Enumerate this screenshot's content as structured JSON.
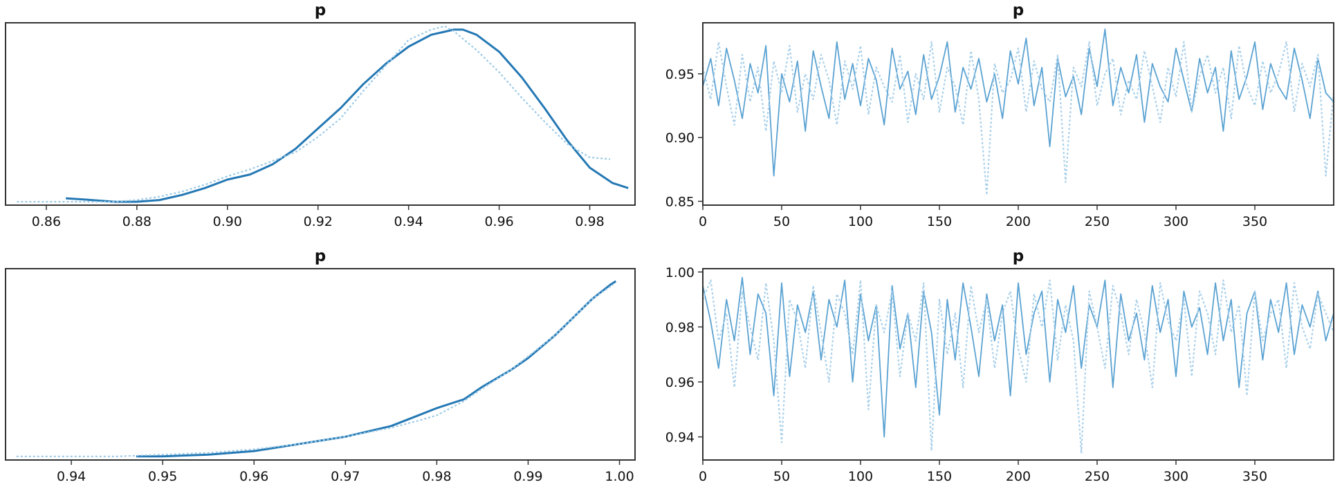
{
  "chart_data": [
    {
      "type": "line",
      "panel": "kde-top",
      "title": "p",
      "xlabel": "",
      "ylabel": "",
      "xlim": [
        0.851,
        0.99
      ],
      "ylim": [
        0,
        1.07
      ],
      "xticks": [
        "0.86",
        "0.88",
        "0.90",
        "0.92",
        "0.94",
        "0.96",
        "0.98"
      ],
      "yticks": [],
      "series": [
        {
          "style": "solid",
          "color": "#2478b4",
          "x": [
            0.8643,
            0.87,
            0.875,
            0.88,
            0.885,
            0.89,
            0.895,
            0.9,
            0.905,
            0.91,
            0.915,
            0.92,
            0.925,
            0.93,
            0.935,
            0.94,
            0.945,
            0.95,
            0.952,
            0.955,
            0.96,
            0.965,
            0.97,
            0.975,
            0.98,
            0.985,
            0.9885
          ],
          "values": [
            0.04,
            0.03,
            0.02,
            0.02,
            0.03,
            0.06,
            0.1,
            0.15,
            0.18,
            0.24,
            0.33,
            0.45,
            0.57,
            0.71,
            0.83,
            0.93,
            1.0,
            1.03,
            1.03,
            1.0,
            0.9,
            0.75,
            0.57,
            0.38,
            0.22,
            0.13,
            0.1
          ]
        },
        {
          "style": "dotted",
          "color": "#9ccae6",
          "x": [
            0.8535,
            0.86,
            0.865,
            0.87,
            0.875,
            0.88,
            0.885,
            0.89,
            0.895,
            0.9,
            0.905,
            0.91,
            0.915,
            0.92,
            0.925,
            0.93,
            0.935,
            0.94,
            0.945,
            0.948,
            0.95,
            0.955,
            0.96,
            0.965,
            0.97,
            0.975,
            0.98,
            0.9845
          ],
          "values": [
            0.02,
            0.02,
            0.02,
            0.02,
            0.02,
            0.03,
            0.05,
            0.08,
            0.12,
            0.17,
            0.21,
            0.26,
            0.31,
            0.4,
            0.51,
            0.67,
            0.82,
            0.97,
            1.03,
            1.05,
            1.02,
            0.91,
            0.78,
            0.63,
            0.49,
            0.36,
            0.28,
            0.27
          ]
        }
      ]
    },
    {
      "type": "line",
      "panel": "trace-top",
      "title": "p",
      "xlabel": "",
      "ylabel": "",
      "xlim": [
        0,
        400
      ],
      "ylim": [
        0.847,
        0.99
      ],
      "xticks": [
        "0",
        "50",
        "100",
        "150",
        "200",
        "250",
        "300",
        "350"
      ],
      "yticks": [
        "0.85",
        "0.90",
        "0.95"
      ],
      "series": [
        {
          "style": "solid",
          "color": "#5aa2d2",
          "x": [
            0,
            5,
            10,
            15,
            20,
            25,
            30,
            35,
            40,
            45,
            50,
            55,
            60,
            65,
            70,
            75,
            80,
            85,
            90,
            95,
            100,
            105,
            110,
            115,
            120,
            125,
            130,
            135,
            140,
            145,
            150,
            155,
            160,
            165,
            170,
            175,
            180,
            185,
            190,
            195,
            200,
            205,
            210,
            215,
            220,
            225,
            230,
            235,
            240,
            245,
            250,
            255,
            260,
            265,
            270,
            275,
            280,
            285,
            290,
            295,
            300,
            305,
            310,
            315,
            320,
            325,
            330,
            335,
            340,
            345,
            350,
            355,
            360,
            365,
            370,
            375,
            380,
            385,
            390,
            395,
            400
          ],
          "values": [
            0.94,
            0.962,
            0.925,
            0.97,
            0.945,
            0.915,
            0.958,
            0.935,
            0.972,
            0.87,
            0.95,
            0.928,
            0.96,
            0.905,
            0.968,
            0.94,
            0.915,
            0.975,
            0.93,
            0.958,
            0.925,
            0.962,
            0.945,
            0.91,
            0.97,
            0.938,
            0.952,
            0.918,
            0.965,
            0.93,
            0.948,
            0.975,
            0.92,
            0.955,
            0.938,
            0.962,
            0.928,
            0.95,
            0.915,
            0.968,
            0.942,
            0.978,
            0.925,
            0.955,
            0.893,
            0.962,
            0.932,
            0.948,
            0.918,
            0.97,
            0.94,
            0.985,
            0.925,
            0.955,
            0.935,
            0.965,
            0.912,
            0.958,
            0.94,
            0.928,
            0.97,
            0.945,
            0.92,
            0.962,
            0.935,
            0.955,
            0.905,
            0.968,
            0.93,
            0.948,
            0.975,
            0.922,
            0.958,
            0.94,
            0.93,
            0.97,
            0.945,
            0.915,
            0.962,
            0.935,
            0.928
          ]
        },
        {
          "style": "dotted",
          "color": "#a9d0ea",
          "x": [
            0,
            5,
            10,
            15,
            20,
            25,
            30,
            35,
            40,
            45,
            50,
            55,
            60,
            65,
            70,
            75,
            80,
            85,
            90,
            95,
            100,
            105,
            110,
            115,
            120,
            125,
            130,
            135,
            140,
            145,
            150,
            155,
            160,
            165,
            170,
            175,
            180,
            185,
            190,
            195,
            200,
            205,
            210,
            215,
            220,
            225,
            230,
            235,
            240,
            245,
            250,
            255,
            260,
            265,
            270,
            275,
            280,
            285,
            290,
            295,
            300,
            305,
            310,
            315,
            320,
            325,
            330,
            335,
            340,
            345,
            350,
            355,
            360,
            365,
            370,
            375,
            380,
            385,
            390,
            395,
            400
          ],
          "values": [
            0.955,
            0.93,
            0.975,
            0.94,
            0.91,
            0.965,
            0.928,
            0.955,
            0.905,
            0.96,
            0.935,
            0.972,
            0.92,
            0.95,
            0.93,
            0.965,
            0.945,
            0.91,
            0.96,
            0.938,
            0.972,
            0.918,
            0.955,
            0.94,
            0.928,
            0.965,
            0.912,
            0.95,
            0.93,
            0.975,
            0.92,
            0.955,
            0.94,
            0.91,
            0.968,
            0.93,
            0.855,
            0.958,
            0.935,
            0.945,
            0.97,
            0.92,
            0.96,
            0.938,
            0.928,
            0.965,
            0.865,
            0.955,
            0.94,
            0.975,
            0.925,
            0.95,
            0.962,
            0.918,
            0.945,
            0.93,
            0.968,
            0.94,
            0.912,
            0.955,
            0.932,
            0.975,
            0.92,
            0.948,
            0.965,
            0.935,
            0.955,
            0.915,
            0.972,
            0.94,
            0.925,
            0.96,
            0.935,
            0.95,
            0.975,
            0.92,
            0.958,
            0.94,
            0.965,
            0.87,
            0.935
          ]
        }
      ]
    },
    {
      "type": "line",
      "panel": "kde-bottom",
      "title": "p",
      "xlabel": "",
      "ylabel": "",
      "xlim": [
        0.9328,
        1.0017
      ],
      "ylim": [
        0,
        1.07
      ],
      "xticks": [
        "0.94",
        "0.95",
        "0.96",
        "0.97",
        "0.98",
        "0.99",
        "1.00"
      ],
      "yticks": [],
      "series": [
        {
          "style": "solid",
          "color": "#2478b4",
          "x": [
            0.9471,
            0.95,
            0.955,
            0.96,
            0.965,
            0.97,
            0.975,
            0.978,
            0.98,
            0.983,
            0.985,
            0.988,
            0.99,
            0.993,
            0.995,
            0.997,
            0.999,
            0.9996
          ],
          "values": [
            0.02,
            0.02,
            0.03,
            0.05,
            0.09,
            0.13,
            0.19,
            0.25,
            0.29,
            0.34,
            0.41,
            0.5,
            0.57,
            0.7,
            0.8,
            0.9,
            0.98,
            1.0
          ]
        },
        {
          "style": "dotted",
          "color": "#9ccae6",
          "x": [
            0.934,
            0.94,
            0.945,
            0.95,
            0.955,
            0.96,
            0.965,
            0.97,
            0.975,
            0.978,
            0.98,
            0.983,
            0.985,
            0.988,
            0.99,
            0.993,
            0.995,
            0.997,
            0.9993
          ],
          "values": [
            0.02,
            0.02,
            0.02,
            0.03,
            0.04,
            0.06,
            0.09,
            0.13,
            0.18,
            0.22,
            0.25,
            0.33,
            0.4,
            0.5,
            0.58,
            0.7,
            0.8,
            0.9,
            0.98
          ]
        }
      ]
    },
    {
      "type": "line",
      "panel": "trace-bottom",
      "title": "p",
      "xlabel": "",
      "ylabel": "",
      "xlim": [
        0,
        400
      ],
      "ylim": [
        0.9316,
        1.0012
      ],
      "xticks": [
        "0",
        "50",
        "100",
        "150",
        "200",
        "250",
        "300",
        "350"
      ],
      "yticks": [
        "0.94",
        "0.96",
        "0.98",
        "1.00"
      ],
      "series": [
        {
          "style": "solid",
          "color": "#5aa2d2",
          "x": [
            0,
            5,
            10,
            15,
            20,
            25,
            30,
            35,
            40,
            45,
            50,
            55,
            60,
            65,
            70,
            75,
            80,
            85,
            90,
            95,
            100,
            105,
            110,
            115,
            120,
            125,
            130,
            135,
            140,
            145,
            150,
            155,
            160,
            165,
            170,
            175,
            180,
            185,
            190,
            195,
            200,
            205,
            210,
            215,
            220,
            225,
            230,
            235,
            240,
            245,
            250,
            255,
            260,
            265,
            270,
            275,
            280,
            285,
            290,
            295,
            300,
            305,
            310,
            315,
            320,
            325,
            330,
            335,
            340,
            345,
            350,
            355,
            360,
            365,
            370,
            375,
            380,
            385,
            390,
            395,
            400
          ],
          "values": [
            0.995,
            0.982,
            0.965,
            0.99,
            0.975,
            0.998,
            0.97,
            0.992,
            0.985,
            0.955,
            0.996,
            0.962,
            0.988,
            0.978,
            0.993,
            0.968,
            0.99,
            0.98,
            0.997,
            0.96,
            0.992,
            0.975,
            0.988,
            0.94,
            0.995,
            0.972,
            0.985,
            0.958,
            0.993,
            0.978,
            0.948,
            0.99,
            0.968,
            0.996,
            0.98,
            0.962,
            0.992,
            0.975,
            0.988,
            0.955,
            0.996,
            0.97,
            0.985,
            0.993,
            0.96,
            0.99,
            0.978,
            0.995,
            0.965,
            0.988,
            0.98,
            0.997,
            0.958,
            0.992,
            0.975,
            0.985,
            0.968,
            0.995,
            0.978,
            0.99,
            0.962,
            0.993,
            0.98,
            0.987,
            0.97,
            0.996,
            0.975,
            0.99,
            0.958,
            0.985,
            0.993,
            0.968,
            0.99,
            0.978,
            0.996,
            0.97,
            0.988,
            0.98,
            0.993,
            0.975,
            0.985
          ]
        },
        {
          "style": "dotted",
          "color": "#a9d0ea",
          "x": [
            0,
            5,
            10,
            15,
            20,
            25,
            30,
            35,
            40,
            45,
            50,
            55,
            60,
            65,
            70,
            75,
            80,
            85,
            90,
            95,
            100,
            105,
            110,
            115,
            120,
            125,
            130,
            135,
            140,
            145,
            150,
            155,
            160,
            165,
            170,
            175,
            180,
            185,
            190,
            195,
            200,
            205,
            210,
            215,
            220,
            225,
            230,
            235,
            240,
            245,
            250,
            255,
            260,
            265,
            270,
            275,
            280,
            285,
            290,
            295,
            300,
            305,
            310,
            315,
            320,
            325,
            330,
            335,
            340,
            345,
            350,
            355,
            360,
            365,
            370,
            375,
            380,
            385,
            390,
            395,
            400
          ],
          "values": [
            0.99,
            0.997,
            0.975,
            0.985,
            0.958,
            0.993,
            0.98,
            0.968,
            0.996,
            0.975,
            0.938,
            0.99,
            0.982,
            0.965,
            0.995,
            0.978,
            0.96,
            0.992,
            0.985,
            0.97,
            0.997,
            0.95,
            0.988,
            0.978,
            0.993,
            0.962,
            0.985,
            0.975,
            0.996,
            0.935,
            0.99,
            0.97,
            0.985,
            0.958,
            0.995,
            0.978,
            0.99,
            0.965,
            0.985,
            0.993,
            0.972,
            0.96,
            0.992,
            0.98,
            0.997,
            0.968,
            0.988,
            0.975,
            0.934,
            0.993,
            0.98,
            0.965,
            0.995,
            0.985,
            0.97,
            0.99,
            0.978,
            0.958,
            0.996,
            0.982,
            0.975,
            0.99,
            0.962,
            0.993,
            0.985,
            0.97,
            0.997,
            0.978,
            0.988,
            0.955,
            0.993,
            0.975,
            0.985,
            0.99,
            0.965,
            0.996,
            0.98,
            0.972,
            0.992,
            0.985,
            0.978
          ]
        }
      ]
    }
  ]
}
